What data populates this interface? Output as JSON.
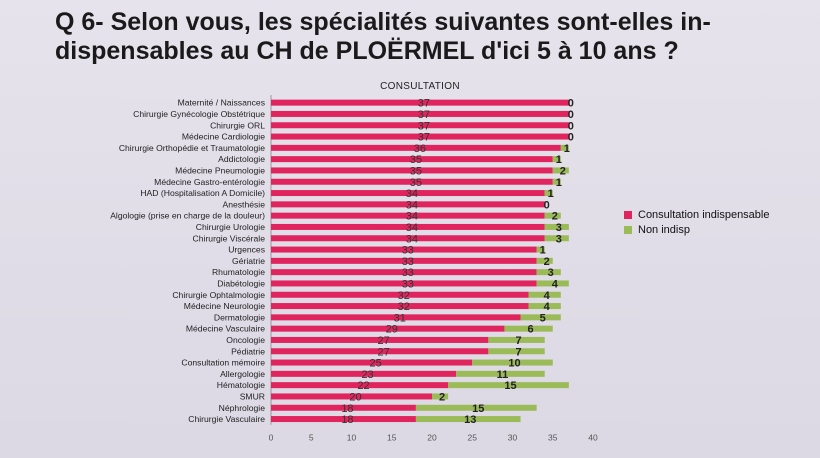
{
  "slide": {
    "title": "Q 6- Selon vous, les spécialités suivantes sont-elles in-dispensables au CH de PLOËRMEL d'ici 5 à 10 ans ?"
  },
  "colors": {
    "indispensable": "#e0245e",
    "non_indisp": "#9bbb59"
  },
  "chart_data": {
    "type": "bar",
    "orientation": "horizontal",
    "stacked": true,
    "title": "CONSULTATION",
    "categories": [
      "Maternité / Naissances",
      "Chirurgie Gynécologie Obstétrique",
      "Chirurgie ORL",
      "Médecine Cardiologie",
      "Chirurgie Orthopédie et Traumatologie",
      "Addictologie",
      "Médecine Pneumologie",
      "Médecine Gastro-entérologie",
      "HAD (Hospitalisation A Domicile)",
      "Anesthésie",
      "Algologie (prise en charge de la douleur)",
      "Chirurgie Urologie",
      "Chirurgie Viscérale",
      "Urgences",
      "Gériatrie",
      "Rhumatologie",
      "Diabétologie",
      "Chirurgie Ophtalmologie",
      "Médecine Neurologie",
      "Dermatologie",
      "Médecine Vasculaire",
      "Oncologie",
      "Pédiatrie",
      "Consultation mémoire",
      "Allergologie",
      "Hématologie",
      "SMUR",
      "Néphrologie",
      "Chirurgie Vasculaire"
    ],
    "series": [
      {
        "name": "Consultation indispensable",
        "values": [
          37,
          37,
          37,
          37,
          36,
          35,
          35,
          35,
          34,
          34,
          34,
          34,
          34,
          33,
          33,
          33,
          33,
          32,
          32,
          31,
          29,
          27,
          27,
          25,
          23,
          22,
          20,
          18,
          18
        ]
      },
      {
        "name": "Non indisp",
        "values": [
          0,
          0,
          0,
          0,
          1,
          1,
          2,
          1,
          1,
          0,
          2,
          3,
          3,
          1,
          2,
          3,
          4,
          4,
          4,
          5,
          6,
          7,
          7,
          10,
          11,
          15,
          2,
          15,
          13
        ]
      }
    ],
    "xlim": [
      0,
      40
    ],
    "xticks": [
      "0",
      "5",
      "10",
      "15",
      "20",
      "25",
      "30",
      "35",
      "40"
    ],
    "grid": false,
    "legend_position": "right"
  }
}
